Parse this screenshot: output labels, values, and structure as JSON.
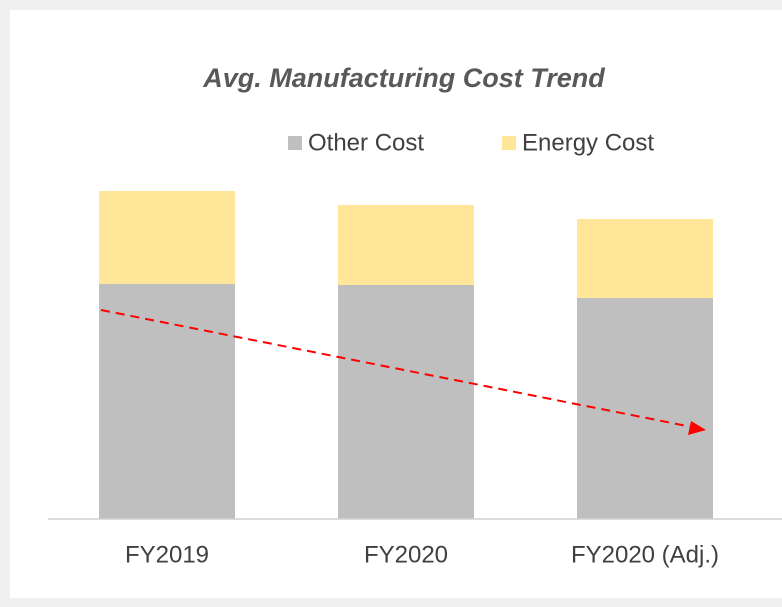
{
  "chart_data": {
    "type": "stacked_bar",
    "title": "Avg. Manufacturing Cost Trend",
    "categories": [
      "FY2019",
      "FY2020",
      "FY2020 (Adj.)"
    ],
    "series": [
      {
        "name": "Other Cost",
        "color": "#bfbfbf",
        "values": [
          235,
          234,
          221
        ]
      },
      {
        "name": "Energy Cost",
        "color": "#ffe699",
        "values": [
          93,
          80,
          79
        ]
      }
    ],
    "ylim": [
      0,
      340
    ],
    "legend": "top"
  }
}
